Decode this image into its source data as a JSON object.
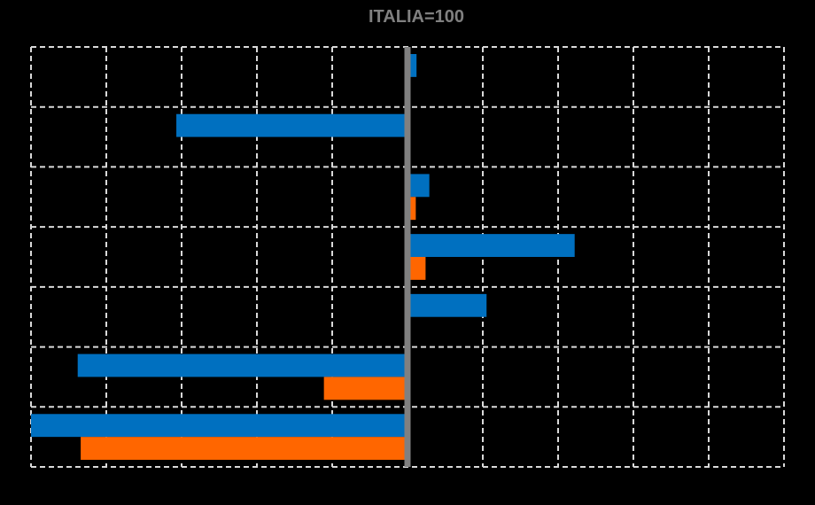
{
  "chart_data": {
    "type": "hbar",
    "title": "ITALIA=100",
    "categories": [
      null,
      null,
      null,
      null,
      null,
      null,
      null
    ],
    "series": [
      {
        "color": "#0070c0",
        "values": [
          1.2,
          -30.7,
          2.9,
          22.2,
          10.5,
          -43.8,
          -50
        ]
      },
      {
        "color": "#ff6600",
        "values": [
          null,
          null,
          1.1,
          2.4,
          null,
          -11.1,
          -43.4
        ]
      }
    ],
    "xlim": [
      -50,
      50
    ],
    "xticks": [
      -50,
      -40,
      -30,
      -20,
      -10,
      0,
      10,
      20,
      30,
      40,
      50
    ],
    "grid": true,
    "grid_color": "#d9d9d9",
    "axis_color": "#808080",
    "background": "#000000"
  }
}
